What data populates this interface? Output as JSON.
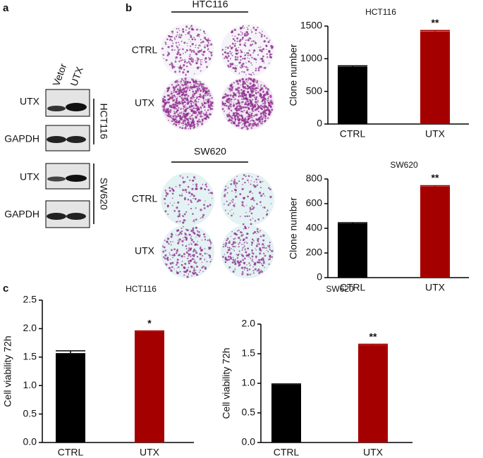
{
  "figure": {
    "panel_labels": [
      "a",
      "b",
      "c"
    ],
    "blot": {
      "lanes": [
        "Vetor",
        "UTX"
      ],
      "proteins": [
        "UTX",
        "GAPDH"
      ],
      "cell_lines": [
        "HCT116",
        "SW620"
      ]
    },
    "colony": {
      "lines": [
        "HTC116",
        "SW620"
      ],
      "conditions": [
        "CTRL",
        "UTX"
      ]
    }
  },
  "chart_data": [
    {
      "type": "bar",
      "title": "HCT116",
      "y_label": "Clone number",
      "categories": [
        "CTRL",
        "UTX"
      ],
      "values": [
        880,
        1420
      ],
      "errors": [
        12,
        12
      ],
      "colors": [
        "#000000",
        "#a50000"
      ],
      "significance": [
        null,
        "**"
      ],
      "ylim": [
        0,
        1500
      ],
      "yticks": [
        0,
        500,
        1000,
        1500
      ]
    },
    {
      "type": "bar",
      "title": "SW620",
      "y_label": "Clone number",
      "categories": [
        "CTRL",
        "UTX"
      ],
      "values": [
        440,
        740
      ],
      "errors": [
        6,
        6
      ],
      "colors": [
        "#000000",
        "#a50000"
      ],
      "significance": [
        null,
        "**"
      ],
      "ylim": [
        0,
        800
      ],
      "yticks": [
        0,
        200,
        400,
        600,
        800
      ]
    },
    {
      "type": "bar",
      "title": "HCT116",
      "y_label": "Cell viability 72h",
      "categories": [
        "CTRL",
        "UTX"
      ],
      "values": [
        1.57,
        1.95
      ],
      "errors": [
        0.04,
        0.01
      ],
      "colors": [
        "#000000",
        "#a50000"
      ],
      "significance": [
        null,
        "*"
      ],
      "ylim": [
        0,
        2.5
      ],
      "yticks": [
        {
          "value": 0,
          "label": "0.0"
        },
        0.5,
        {
          "value": 1,
          "label": "1.0"
        },
        1.5,
        {
          "value": 2,
          "label": "2.0"
        },
        2.5
      ]
    },
    {
      "type": "bar",
      "title": "SW620",
      "y_label": "Cell viability 72h",
      "categories": [
        "CTRL",
        "UTX"
      ],
      "values": [
        0.98,
        1.65
      ],
      "errors": [
        0.01,
        0.01
      ],
      "colors": [
        "#000000",
        "#a50000"
      ],
      "significance": [
        null,
        "**"
      ],
      "ylim": [
        0,
        2
      ],
      "yticks": [
        {
          "value": 0,
          "label": "0.0"
        },
        0.5,
        {
          "value": 1,
          "label": "1.0"
        },
        1.5,
        {
          "value": 2,
          "label": "2.0"
        }
      ]
    }
  ]
}
